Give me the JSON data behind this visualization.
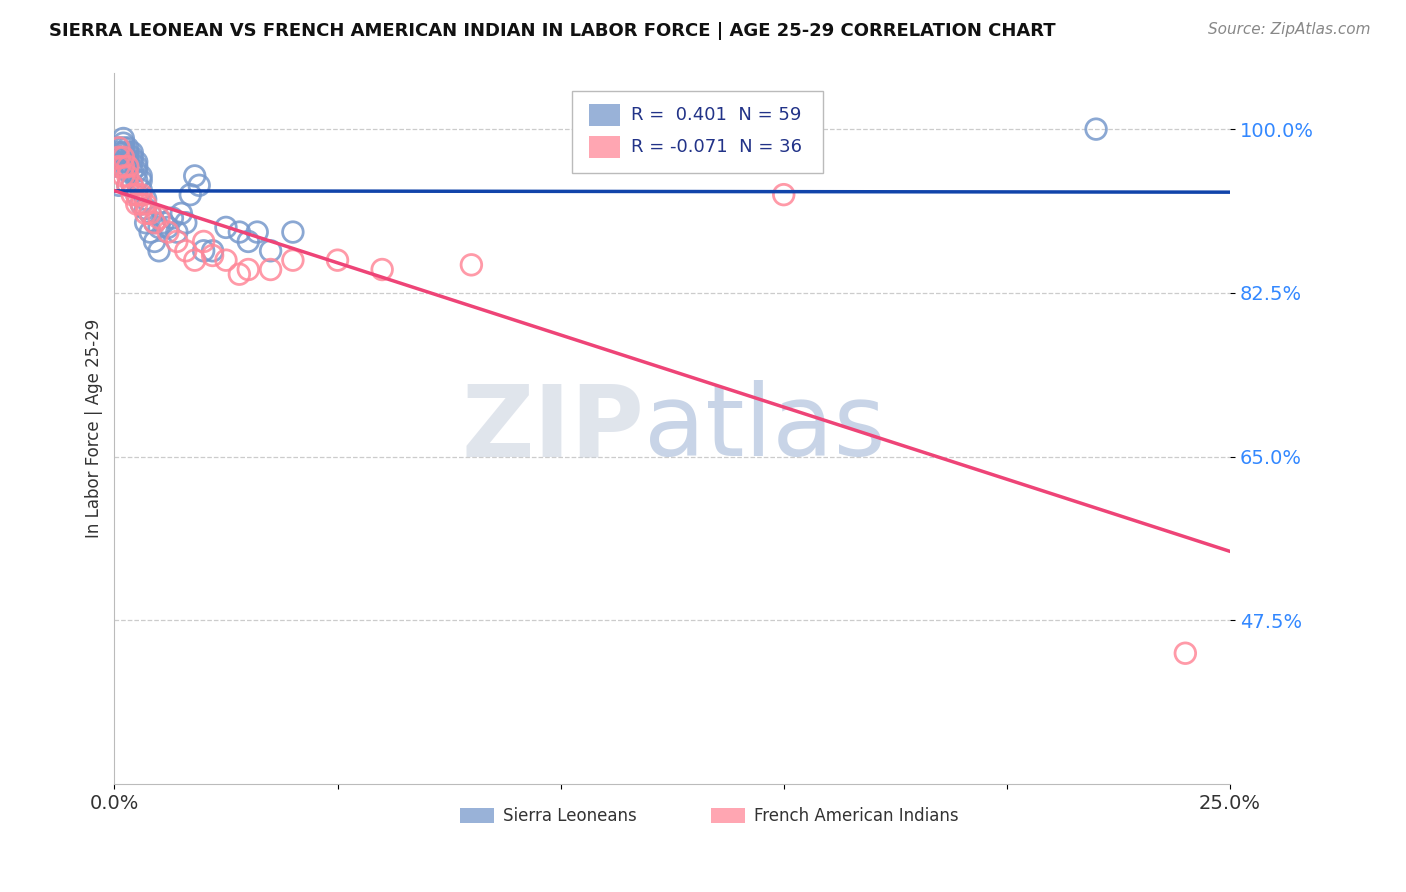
{
  "title": "SIERRA LEONEAN VS FRENCH AMERICAN INDIAN IN LABOR FORCE | AGE 25-29 CORRELATION CHART",
  "source": "Source: ZipAtlas.com",
  "ylabel": "In Labor Force | Age 25-29",
  "xlim": [
    0.0,
    0.25
  ],
  "ylim": [
    0.3,
    1.06
  ],
  "ytick_vals": [
    0.475,
    0.65,
    0.825,
    1.0
  ],
  "ytick_labels": [
    "47.5%",
    "65.0%",
    "82.5%",
    "100.0%"
  ],
  "xtick_vals": [
    0.0,
    0.05,
    0.1,
    0.15,
    0.2,
    0.25
  ],
  "xtick_labels": [
    "0.0%",
    "",
    "",
    "",
    "",
    "25.0%"
  ],
  "blue_label": "Sierra Leoneans",
  "pink_label": "French American Indians",
  "legend_blue_r": "0.401",
  "legend_blue_n": "59",
  "legend_pink_r": "-0.071",
  "legend_pink_n": "36",
  "blue_dot_color": "#7799CC",
  "pink_dot_color": "#FF8899",
  "blue_line_color": "#1144AA",
  "pink_line_color": "#EE4477",
  "blue_points_x": [
    0.001,
    0.001,
    0.001,
    0.001,
    0.001,
    0.002,
    0.002,
    0.002,
    0.002,
    0.002,
    0.002,
    0.002,
    0.003,
    0.003,
    0.003,
    0.003,
    0.003,
    0.003,
    0.004,
    0.004,
    0.004,
    0.004,
    0.004,
    0.005,
    0.005,
    0.005,
    0.005,
    0.005,
    0.006,
    0.006,
    0.006,
    0.006,
    0.007,
    0.007,
    0.007,
    0.008,
    0.008,
    0.009,
    0.009,
    0.01,
    0.01,
    0.011,
    0.012,
    0.013,
    0.014,
    0.015,
    0.016,
    0.017,
    0.018,
    0.019,
    0.02,
    0.022,
    0.025,
    0.028,
    0.03,
    0.032,
    0.035,
    0.04,
    0.22
  ],
  "blue_points_y": [
    0.94,
    0.96,
    0.97,
    0.975,
    0.98,
    0.96,
    0.965,
    0.97,
    0.975,
    0.98,
    0.985,
    0.99,
    0.94,
    0.955,
    0.965,
    0.97,
    0.975,
    0.98,
    0.94,
    0.955,
    0.965,
    0.97,
    0.975,
    0.93,
    0.945,
    0.955,
    0.96,
    0.965,
    0.92,
    0.935,
    0.945,
    0.95,
    0.9,
    0.915,
    0.925,
    0.89,
    0.91,
    0.88,
    0.9,
    0.87,
    0.895,
    0.9,
    0.895,
    0.905,
    0.89,
    0.91,
    0.9,
    0.93,
    0.95,
    0.94,
    0.87,
    0.87,
    0.895,
    0.89,
    0.88,
    0.89,
    0.87,
    0.89,
    1.0
  ],
  "pink_points_x": [
    0.001,
    0.001,
    0.001,
    0.002,
    0.002,
    0.002,
    0.003,
    0.003,
    0.003,
    0.004,
    0.004,
    0.005,
    0.005,
    0.006,
    0.006,
    0.007,
    0.007,
    0.008,
    0.009,
    0.01,
    0.012,
    0.014,
    0.016,
    0.018,
    0.02,
    0.022,
    0.025,
    0.028,
    0.03,
    0.035,
    0.04,
    0.05,
    0.06,
    0.08,
    0.15,
    0.24
  ],
  "pink_points_y": [
    0.96,
    0.97,
    0.98,
    0.95,
    0.96,
    0.97,
    0.94,
    0.95,
    0.96,
    0.93,
    0.94,
    0.92,
    0.93,
    0.92,
    0.93,
    0.91,
    0.92,
    0.91,
    0.9,
    0.905,
    0.89,
    0.88,
    0.87,
    0.86,
    0.88,
    0.865,
    0.86,
    0.845,
    0.85,
    0.85,
    0.86,
    0.86,
    0.85,
    0.855,
    0.93,
    0.44
  ],
  "background_color": "#ffffff",
  "grid_color": "#cccccc",
  "tick_color": "#3388ff",
  "title_color": "#111111",
  "source_color": "#888888"
}
